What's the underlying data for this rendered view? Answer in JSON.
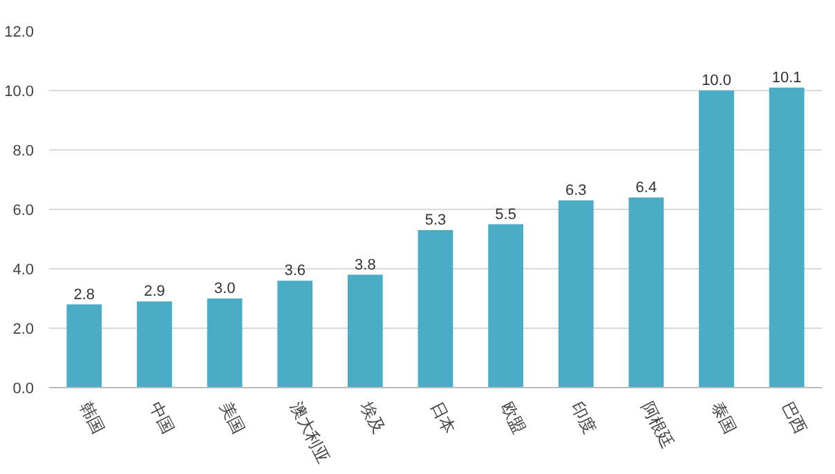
{
  "chart_data": {
    "type": "bar",
    "categories": [
      "韩国",
      "中国",
      "美国",
      "澳大利亚",
      "埃及",
      "日本",
      "欧盟",
      "印度",
      "阿根廷",
      "泰国",
      "巴西"
    ],
    "values": [
      2.8,
      2.9,
      3.0,
      3.6,
      3.8,
      5.3,
      5.5,
      6.3,
      6.4,
      10.0,
      10.1
    ],
    "value_labels": [
      "2.8",
      "2.9",
      "3.0",
      "3.6",
      "3.8",
      "5.3",
      "5.5",
      "6.3",
      "6.4",
      "10.0",
      "10.1"
    ],
    "color": "#4bacc6",
    "ylim": [
      0,
      12
    ],
    "yticks": [
      {
        "value": 0,
        "label": "0.0"
      },
      {
        "value": 2,
        "label": "2.0"
      },
      {
        "value": 4,
        "label": "4.0"
      },
      {
        "value": 6,
        "label": "6.0"
      },
      {
        "value": 8,
        "label": "8.0"
      },
      {
        "value": 10,
        "label": "10.0"
      },
      {
        "value": 12,
        "label": "12.0"
      }
    ],
    "grid": "y"
  }
}
